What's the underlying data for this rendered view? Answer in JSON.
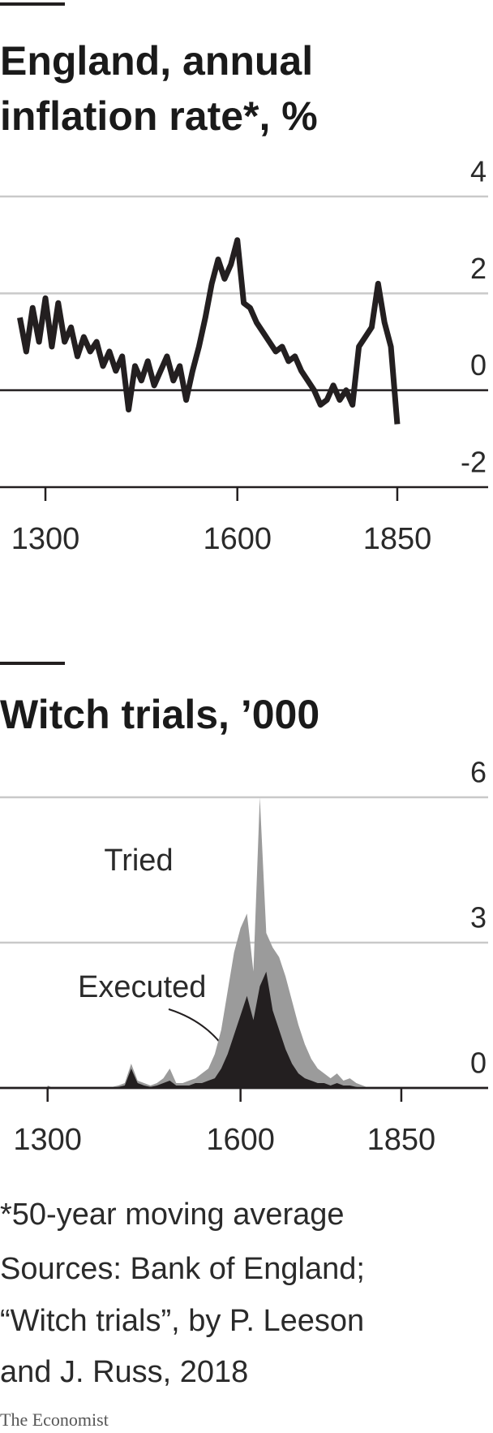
{
  "chart_data": [
    {
      "type": "line",
      "title": "England, annual inflation rate*, %",
      "x": [
        1260,
        1270,
        1280,
        1290,
        1300,
        1310,
        1320,
        1330,
        1340,
        1350,
        1360,
        1370,
        1380,
        1390,
        1400,
        1410,
        1420,
        1430,
        1440,
        1450,
        1460,
        1470,
        1480,
        1490,
        1500,
        1510,
        1520,
        1530,
        1540,
        1550,
        1560,
        1570,
        1580,
        1590,
        1600,
        1610,
        1620,
        1630,
        1640,
        1650,
        1660,
        1670,
        1680,
        1690,
        1700,
        1710,
        1720,
        1730,
        1740,
        1750,
        1760,
        1770,
        1780,
        1790,
        1800,
        1810,
        1820,
        1830,
        1840,
        1850
      ],
      "values": [
        1.5,
        0.8,
        1.7,
        1.0,
        1.9,
        0.9,
        1.8,
        1.0,
        1.3,
        0.7,
        1.1,
        0.8,
        1.0,
        0.5,
        0.8,
        0.4,
        0.7,
        -0.4,
        0.5,
        0.2,
        0.6,
        0.1,
        0.4,
        0.7,
        0.2,
        0.5,
        -0.2,
        0.4,
        0.9,
        1.5,
        2.2,
        2.7,
        2.3,
        2.6,
        3.1,
        1.8,
        1.7,
        1.4,
        1.2,
        1.0,
        0.8,
        0.9,
        0.6,
        0.7,
        0.4,
        0.2,
        0,
        -0.3,
        -0.2,
        0.1,
        -0.2,
        0,
        -0.3,
        0.9,
        1.1,
        1.3,
        2.2,
        1.4,
        0.9,
        -0.7
      ],
      "color": "#231f20",
      "xlim": [
        1229,
        1992
      ],
      "xticks": [
        1300,
        1600,
        1850
      ],
      "ylim": [
        -2,
        4
      ],
      "yticks": [
        -2,
        0,
        2,
        4
      ],
      "grid": true
    },
    {
      "type": "area",
      "title": "Witch trials, ’000",
      "x": [
        1300,
        1310,
        1320,
        1330,
        1340,
        1350,
        1360,
        1370,
        1380,
        1390,
        1400,
        1410,
        1420,
        1430,
        1440,
        1450,
        1460,
        1470,
        1480,
        1490,
        1500,
        1510,
        1520,
        1530,
        1540,
        1550,
        1560,
        1570,
        1580,
        1590,
        1600,
        1610,
        1620,
        1630,
        1640,
        1650,
        1660,
        1670,
        1680,
        1690,
        1700,
        1710,
        1720,
        1730,
        1740,
        1750,
        1760,
        1770,
        1780,
        1790,
        1800,
        1810,
        1820,
        1830,
        1840,
        1850
      ],
      "series": [
        {
          "name": "Tried",
          "color": "#9b9b9b",
          "values": [
            0.05,
            0,
            0,
            0,
            0,
            0,
            0,
            0,
            0,
            0,
            0.02,
            0.05,
            0.1,
            0.5,
            0.15,
            0.1,
            0.05,
            0.1,
            0.2,
            0.4,
            0.1,
            0.1,
            0.15,
            0.2,
            0.3,
            0.4,
            0.7,
            1.2,
            2.0,
            2.8,
            3.3,
            3.6,
            2.4,
            6.0,
            3.2,
            2.9,
            2.7,
            2.3,
            1.8,
            1.3,
            0.9,
            0.6,
            0.4,
            0.3,
            0.2,
            0.3,
            0.15,
            0.2,
            0.1,
            0.05,
            0,
            0,
            0,
            0,
            0,
            0
          ]
        },
        {
          "name": "Executed",
          "color": "#231f20",
          "values": [
            0.03,
            0,
            0,
            0,
            0,
            0,
            0,
            0,
            0,
            0,
            0,
            0.02,
            0.05,
            0.4,
            0.1,
            0.05,
            0.02,
            0.05,
            0.1,
            0.15,
            0.05,
            0.05,
            0.05,
            0.1,
            0.1,
            0.15,
            0.2,
            0.4,
            0.7,
            1.1,
            1.5,
            1.9,
            1.4,
            2.1,
            2.4,
            1.6,
            1.2,
            0.8,
            0.5,
            0.3,
            0.2,
            0.15,
            0.1,
            0.1,
            0.05,
            0.1,
            0.05,
            0.05,
            0.02,
            0,
            0,
            0,
            0,
            0,
            0,
            0
          ]
        }
      ],
      "xlim": [
        1226,
        1985
      ],
      "xticks": [
        1300,
        1600,
        1850
      ],
      "ylim": [
        0,
        6
      ],
      "yticks": [
        0,
        3,
        6
      ],
      "grid": true
    }
  ],
  "footnote": "*50-year moving average",
  "source": [
    "Sources: Bank of England;",
    "“Witch trials”,  by P. Leeson",
    "and J. Russ, 2018"
  ],
  "brand": "The Economist"
}
